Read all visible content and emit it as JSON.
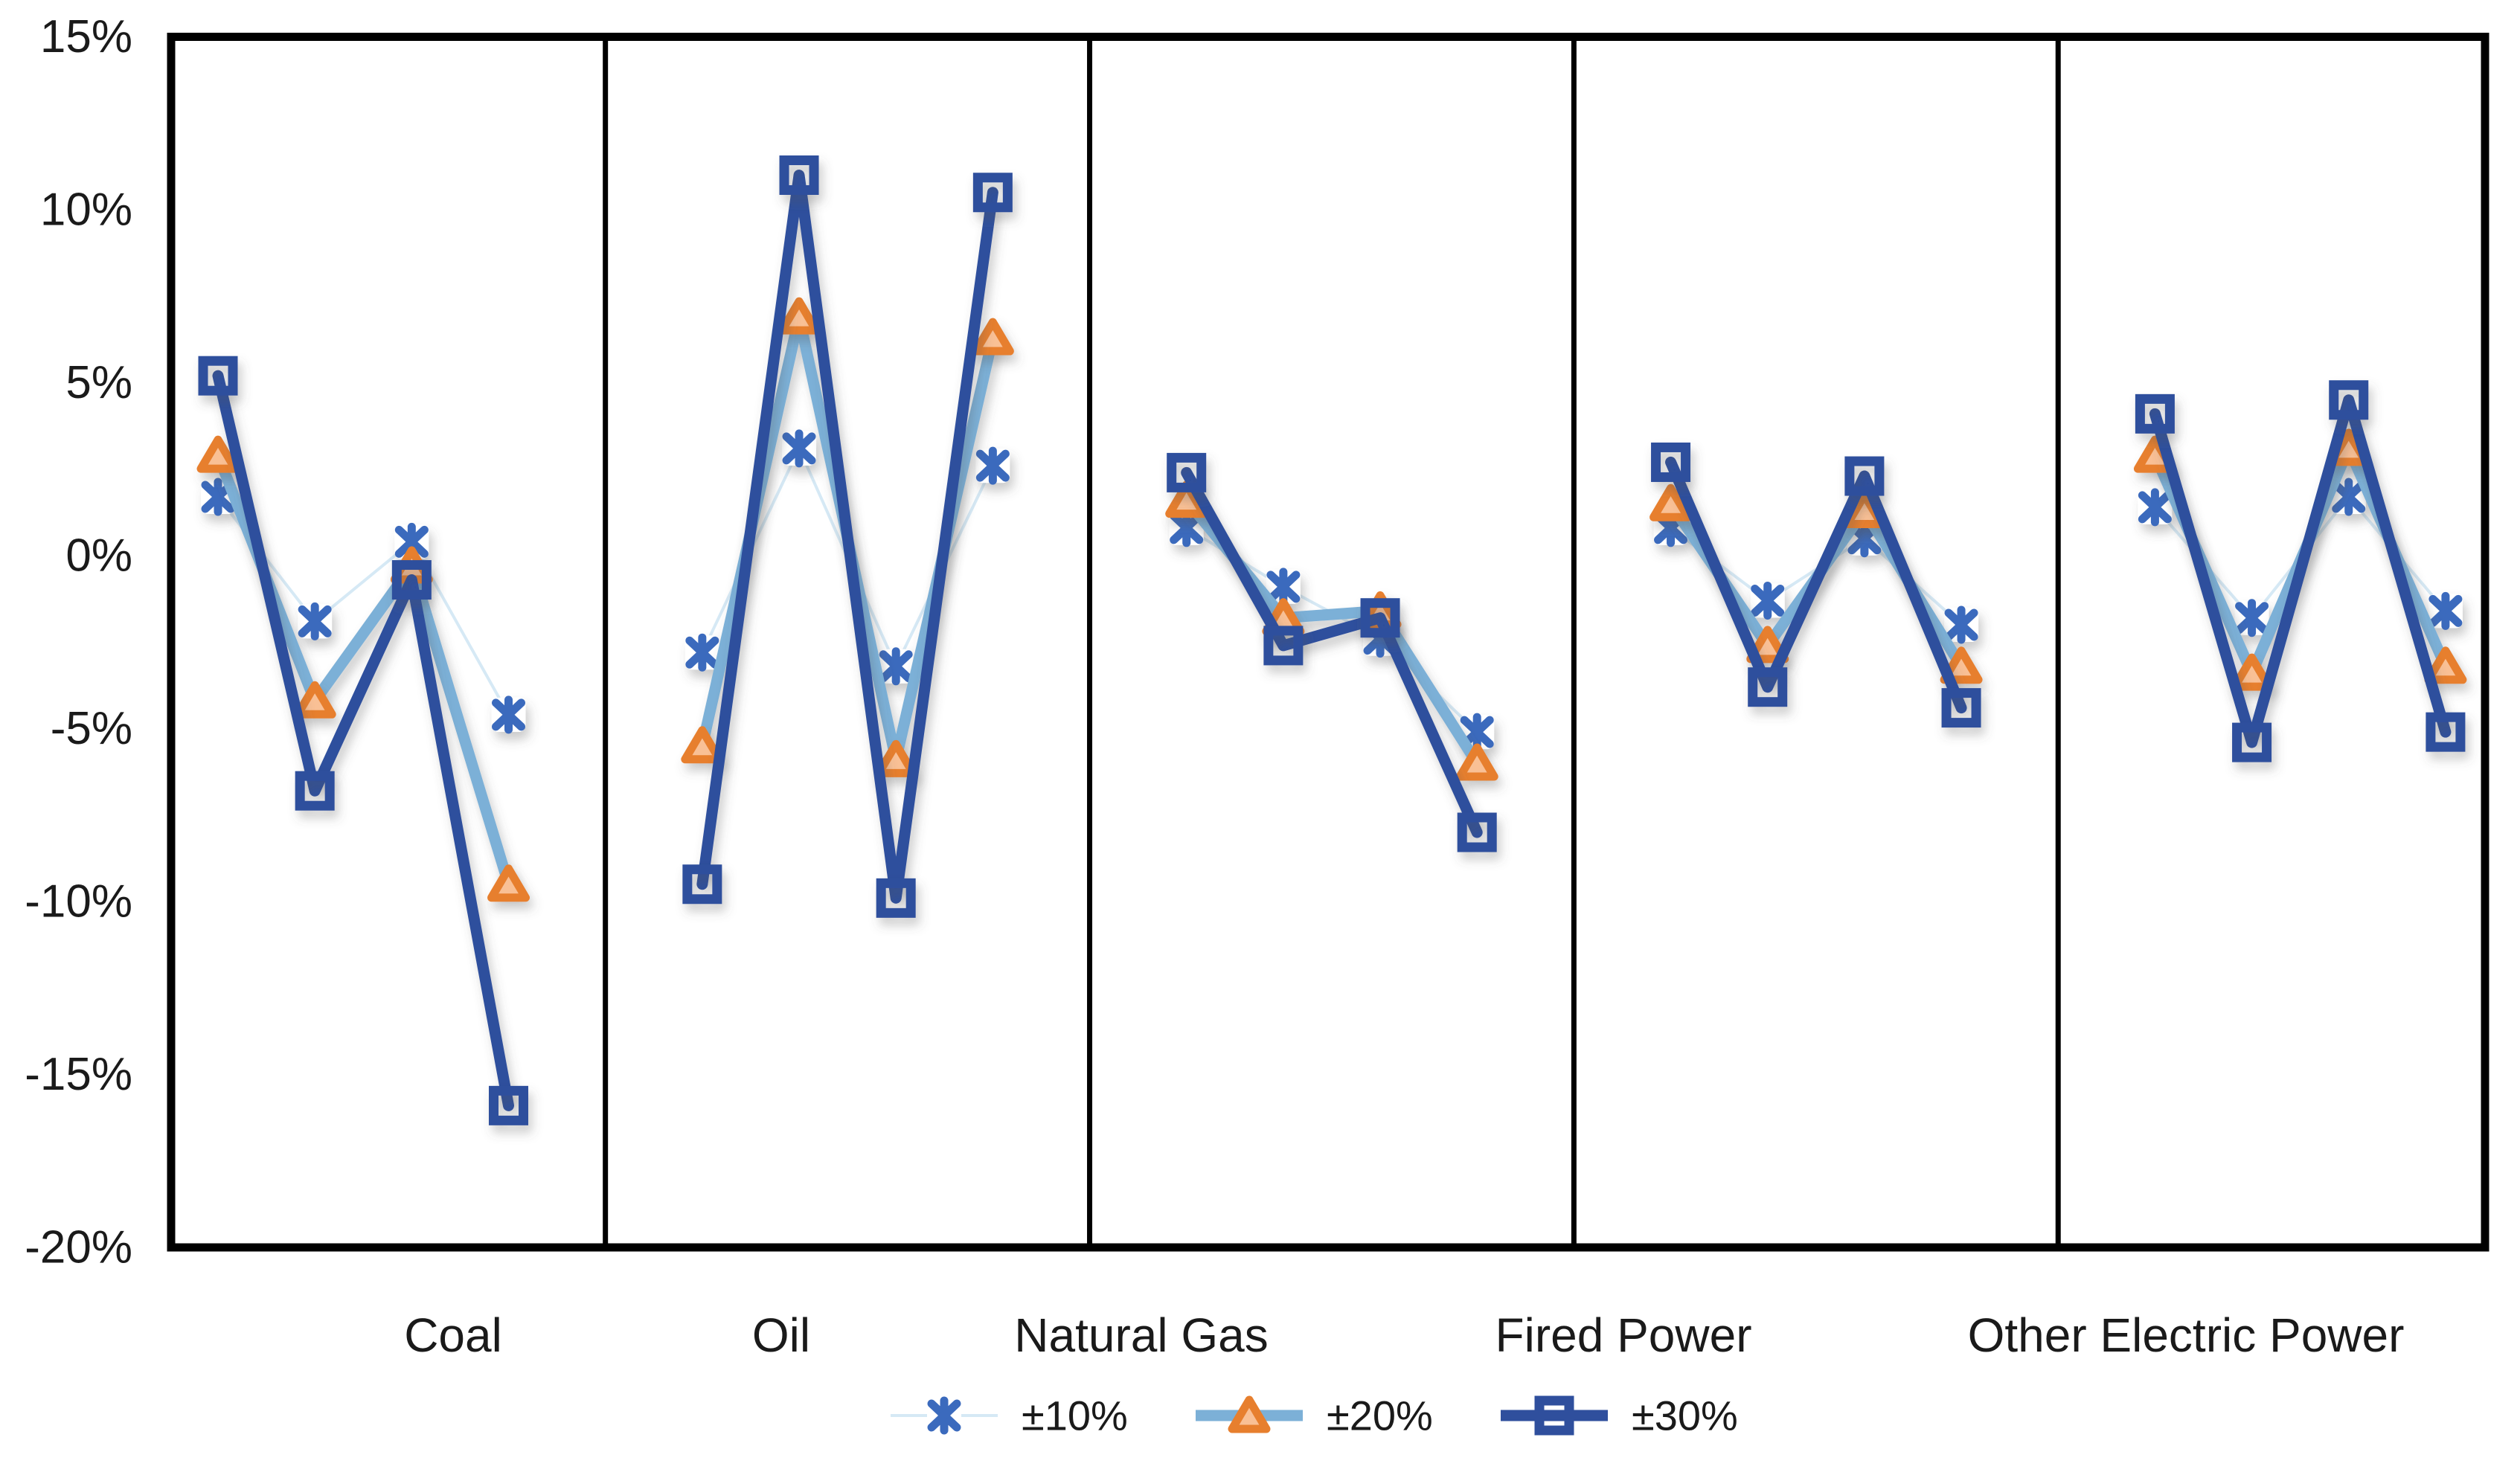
{
  "chart_data": {
    "type": "line",
    "title": "",
    "xlabel": "",
    "ylabel": "",
    "ylim": [
      -20,
      15
    ],
    "grid": false,
    "legend_position": "bottom-center",
    "y_axis": {
      "ticks": [
        {
          "value": 15,
          "label": "15%"
        },
        {
          "value": 10,
          "label": "10%"
        },
        {
          "value": 5,
          "label": "5%"
        },
        {
          "value": 0,
          "label": "0%"
        },
        {
          "value": -5,
          "label": "-5%"
        },
        {
          "value": -10,
          "label": "-10%"
        },
        {
          "value": -15,
          "label": "-15%"
        },
        {
          "value": -20,
          "label": "-20%"
        }
      ]
    },
    "series_meta": [
      {
        "id": "pm10",
        "name": "±10%",
        "marker": "x",
        "line_color": "#d6e9f5",
        "line_width": 4,
        "marker_color": "#3b6abd",
        "marker_fill": "#ffffff"
      },
      {
        "id": "pm20",
        "name": "±20%",
        "marker": "triangle",
        "line_color": "#7cb0d7",
        "line_width": 15,
        "marker_color": "#e77f2e",
        "marker_fill": "#f9c095"
      },
      {
        "id": "pm30",
        "name": "±30%",
        "marker": "square",
        "line_color": "#2f4f9d",
        "line_width": 15,
        "marker_color": "#2f4f9d",
        "marker_fill": "none"
      }
    ],
    "panels": [
      {
        "label": "Coal",
        "series": {
          "pm10": [
            1.7,
            -1.9,
            0.4,
            -4.6
          ],
          "pm20": [
            2.9,
            -4.2,
            -0.3,
            -9.5
          ],
          "pm30": [
            5.2,
            -6.8,
            -0.7,
            -15.9
          ]
        }
      },
      {
        "label": "Oil",
        "series": {
          "pm10": [
            -2.8,
            3.1,
            -3.2,
            2.6
          ],
          "pm20": [
            -5.5,
            6.9,
            -5.9,
            6.3
          ],
          "pm30": [
            -9.5,
            11.0,
            -9.9,
            10.5
          ]
        }
      },
      {
        "label": "Natural Gas",
        "series": {
          "pm10": [
            0.8,
            -0.9,
            -2.4,
            -5.1
          ],
          "pm20": [
            1.6,
            -1.8,
            -1.6,
            -6.0
          ],
          "pm30": [
            2.4,
            -2.6,
            -1.8,
            -8.0
          ]
        }
      },
      {
        "label": "Fired Power",
        "series": {
          "pm10": [
            0.8,
            -1.3,
            0.5,
            -2.0
          ],
          "pm20": [
            1.5,
            -2.6,
            1.3,
            -3.2
          ],
          "pm30": [
            2.7,
            -3.8,
            2.3,
            -4.4
          ]
        }
      },
      {
        "label": "Other Electric Power",
        "series": {
          "pm10": [
            1.4,
            -1.8,
            1.7,
            -1.6
          ],
          "pm20": [
            2.9,
            -3.4,
            3.1,
            -3.2
          ],
          "pm30": [
            4.1,
            -5.4,
            4.5,
            -5.1
          ]
        }
      }
    ],
    "legend": [
      {
        "series": "pm10",
        "label": "±10%"
      },
      {
        "series": "pm20",
        "label": "±20%"
      },
      {
        "series": "pm30",
        "label": "±30%"
      }
    ]
  }
}
